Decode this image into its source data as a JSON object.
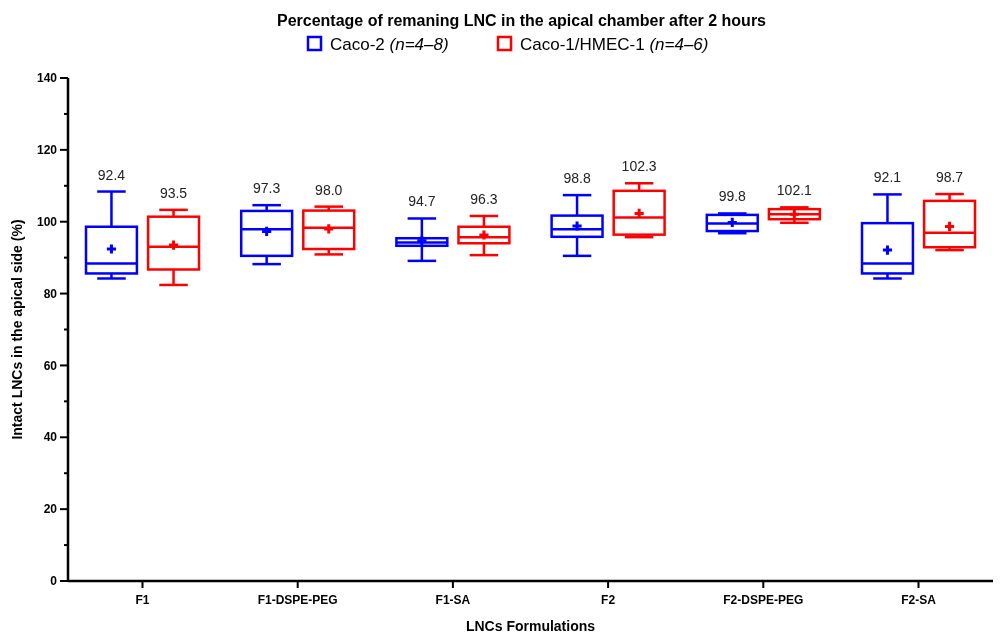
{
  "chart_data": {
    "type": "box",
    "title": "Percentage of remaning LNC in the apical chamber after 2 hours",
    "xlabel": "LNCs Formulations",
    "ylabel": "Intact LNCs in the apical side (%)",
    "categories": [
      "F1",
      "F1-DSPE-PEG",
      "F1-SA",
      "F2",
      "F2-DSPE-PEG",
      "F2-SA"
    ],
    "ylim": [
      0,
      140
    ],
    "yticks": [
      0,
      {
        "value": 10,
        "label": null
      },
      20,
      {
        "value": 30,
        "label": null
      },
      40,
      {
        "value": 50,
        "label": null
      },
      60,
      {
        "value": 70,
        "label": null
      },
      80,
      {
        "value": 90,
        "label": null
      },
      100,
      {
        "value": 110,
        "label": null
      },
      120,
      {
        "value": 130,
        "label": null
      },
      140
    ],
    "legend": "top",
    "grid": false,
    "series": [
      {
        "name": "Caco-2 (n=4–8)",
        "color": "#0000ff",
        "boxes": [
          {
            "low": 84.2,
            "q1": 85.6,
            "median": 88.4,
            "q3": 98.6,
            "high": 108.4,
            "mean": 92.4
          },
          {
            "low": 88.2,
            "q1": 90.5,
            "median": 97.9,
            "q3": 103.0,
            "high": 104.6,
            "mean": 97.3
          },
          {
            "low": 89.1,
            "q1": 93.3,
            "median": 94.2,
            "q3": 95.4,
            "high": 100.9,
            "mean": 94.7
          },
          {
            "low": 90.5,
            "q1": 95.8,
            "median": 97.9,
            "q3": 101.7,
            "high": 107.4,
            "mean": 98.8
          },
          {
            "low": 96.8,
            "q1": 97.4,
            "median": 99.5,
            "q3": 101.9,
            "high": 102.3,
            "mean": 99.8
          },
          {
            "low": 84.2,
            "q1": 85.6,
            "median": 88.4,
            "q3": 99.6,
            "high": 107.6,
            "mean": 92.1
          }
        ]
      },
      {
        "name": "Caco-1/HMEC-1 (n=4–6)",
        "color": "#ff0000",
        "boxes": [
          {
            "low": 82.4,
            "q1": 86.7,
            "median": 93.0,
            "q3": 101.4,
            "high": 103.3,
            "mean": 93.5
          },
          {
            "low": 90.9,
            "q1": 92.4,
            "median": 98.3,
            "q3": 103.1,
            "high": 104.2,
            "mean": 98.0
          },
          {
            "low": 90.7,
            "q1": 94.0,
            "median": 95.7,
            "q3": 98.6,
            "high": 101.6,
            "mean": 96.3
          },
          {
            "low": 95.7,
            "q1": 96.4,
            "median": 101.2,
            "q3": 108.6,
            "high": 110.7,
            "mean": 102.3
          },
          {
            "low": 99.7,
            "q1": 100.7,
            "median": 102.1,
            "q3": 103.5,
            "high": 104.0,
            "mean": 102.1
          },
          {
            "low": 92.1,
            "q1": 92.9,
            "median": 96.9,
            "q3": 105.8,
            "high": 107.7,
            "mean": 98.7
          }
        ]
      }
    ],
    "annotations": [
      "92.4",
      "93.5",
      "97.3",
      "98.0",
      "94.7",
      "96.3",
      "98.8",
      "102.3",
      "99.8",
      "102.1",
      "92.1",
      "98.7"
    ]
  }
}
